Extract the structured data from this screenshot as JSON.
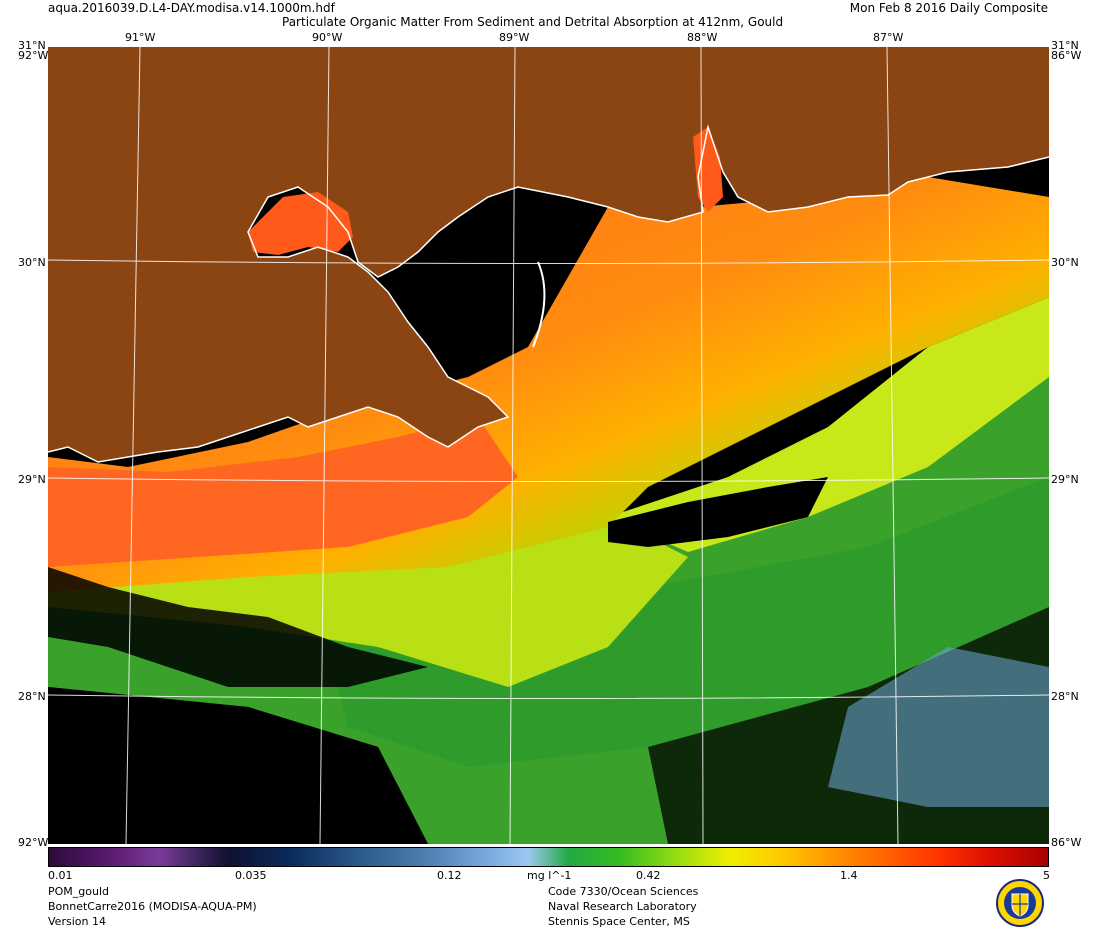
{
  "header": {
    "filename": "aqua.2016039.D.L4-DAY.modisa.v14.1000m.hdf",
    "title": "Particulate Organic Matter From Sediment and Detrital Absorption at 412nm, Gould",
    "date": "Mon Feb  8 2016 Daily Composite"
  },
  "map": {
    "lon_labels": [
      "91°W",
      "90°W",
      "89°W",
      "88°W",
      "87°W"
    ],
    "corner_top_left": "31°N",
    "corner_top_right": "31°N",
    "lat_labels": [
      "30°N",
      "29°N",
      "28°N"
    ],
    "edge_left_top": "92°W",
    "edge_right_top": "86°W",
    "edge_left_bottom": "92°W",
    "edge_right_bottom": "86°W",
    "colors": {
      "land": "#8b4513",
      "nodata": "#000000",
      "coast": "#ffffff"
    }
  },
  "colorbar": {
    "ticks": [
      "0.01",
      "0.035",
      "0.12",
      "mg l^-1",
      "0.42",
      "1.4",
      "5"
    ]
  },
  "footer": {
    "left": [
      "POM_gould",
      "BonnetCarre2016 (MODISA-AQUA-PM)",
      "Version 14"
    ],
    "center": [
      "Code 7330/Ocean Sciences",
      "Naval Research Laboratory",
      "Stennis Space Center, MS"
    ]
  },
  "logo": {
    "icon": "nrl-seal-icon"
  }
}
